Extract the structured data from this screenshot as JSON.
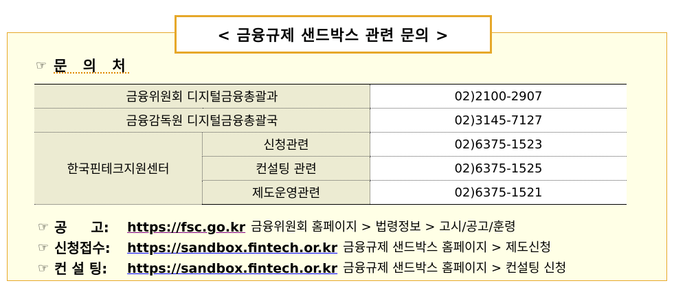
{
  "title": "< 금융규제 샌드박스 관련 문의 >",
  "section": {
    "icon": "pointing-hand-icon",
    "label": "문 의 처"
  },
  "contacts": [
    {
      "org": "금융위원회 디지털금융총괄과",
      "phone": "02)2100-2907"
    },
    {
      "org": "금융감독원 디지털금융총괄국",
      "phone": "02)3145-7127"
    },
    {
      "org": "한국핀테크지원센터",
      "subs": [
        {
          "name": "신청관련",
          "phone": "02)6375-1523"
        },
        {
          "name": "컨설팅 관련",
          "phone": "02)6375-1525"
        },
        {
          "name": "제도운영관련",
          "phone": "02)6375-1521"
        }
      ]
    }
  ],
  "links": [
    {
      "label": "공     고:",
      "url": "https://fsc.go.kr",
      "path": "금융위원회 홈페이지 > 법령정보 > 고시/공고/훈령"
    },
    {
      "label": "신청접수:",
      "url": "https://sandbox.fintech.or.kr",
      "path": "금융규제 샌드박스 홈페이지 > 제도신청"
    },
    {
      "label": "컨 설 팅:",
      "url": "https://sandbox.fintech.or.kr",
      "path": "금융규제 샌드박스 홈페이지 > 컨설팅 신청"
    }
  ],
  "colors": {
    "border": "#e6a82a",
    "background": "#ffffe6",
    "label_cell": "#ecebd2"
  }
}
